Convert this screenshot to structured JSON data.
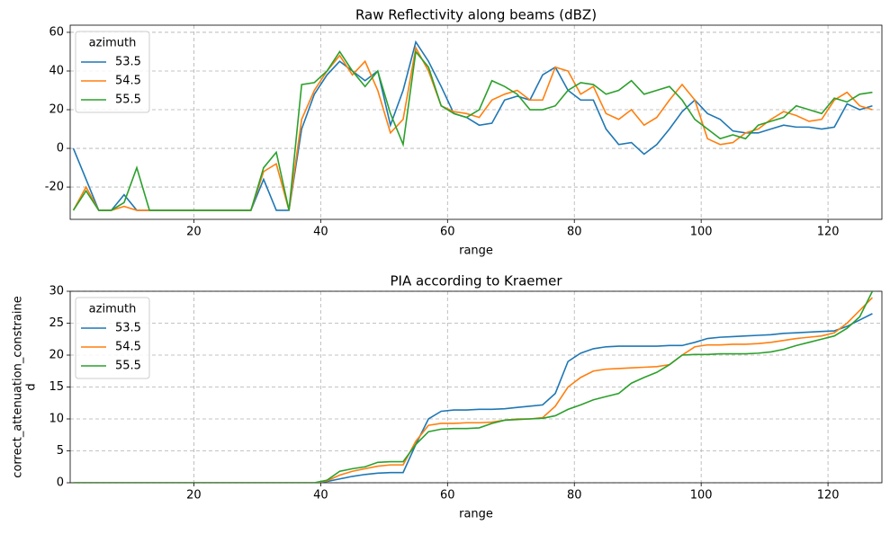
{
  "chart_data": [
    {
      "type": "line",
      "title": "Raw Reflectivity along beams (dBZ)",
      "xlabel": "range",
      "x": [
        1,
        3,
        5,
        7,
        9,
        11,
        13,
        15,
        17,
        19,
        21,
        23,
        25,
        27,
        29,
        31,
        33,
        35,
        37,
        39,
        41,
        43,
        45,
        47,
        49,
        51,
        53,
        55,
        57,
        59,
        61,
        63,
        65,
        67,
        69,
        71,
        73,
        75,
        77,
        79,
        81,
        83,
        85,
        87,
        89,
        91,
        93,
        95,
        97,
        99,
        101,
        103,
        105,
        107,
        109,
        111,
        113,
        115,
        117,
        119,
        121,
        123,
        125,
        127
      ],
      "xlim": [
        0.5,
        128.5
      ],
      "xticks": [
        20,
        40,
        60,
        80,
        100,
        120
      ],
      "ylim": [
        -36.7,
        63.7
      ],
      "yticks": [
        -20,
        0,
        20,
        40,
        60
      ],
      "grid": true,
      "legend_title": "azimuth",
      "legend": "upper left",
      "series": [
        {
          "name": "53.5",
          "color": "#1f77b4",
          "values": [
            0,
            -16,
            -32,
            -32,
            -24,
            -32,
            -32,
            -32,
            -32,
            -32,
            -32,
            -32,
            -32,
            -32,
            -32,
            -16,
            -32,
            -32,
            10,
            28,
            38,
            45,
            40,
            35,
            40,
            12,
            30,
            55,
            45,
            32,
            18,
            16,
            12,
            13,
            25,
            27,
            25,
            38,
            42,
            30,
            25,
            25,
            10,
            2,
            3,
            -3,
            2,
            10,
            19,
            25,
            18,
            15,
            9,
            8,
            8,
            10,
            12,
            11,
            11,
            10,
            11,
            23,
            20,
            22
          ]
        },
        {
          "name": "54.5",
          "color": "#ff7f0e",
          "values": [
            -32,
            -20,
            -32,
            -32,
            -30,
            -32,
            -32,
            -32,
            -32,
            -32,
            -32,
            -32,
            -32,
            -32,
            -32,
            -12,
            -8,
            -32,
            15,
            30,
            40,
            48,
            38,
            45,
            30,
            8,
            15,
            52,
            40,
            22,
            19,
            18,
            16,
            25,
            28,
            30,
            25,
            25,
            42,
            40,
            28,
            32,
            18,
            15,
            20,
            12,
            16,
            25,
            33,
            25,
            5,
            2,
            3,
            8,
            10,
            15,
            19,
            17,
            14,
            15,
            25,
            29,
            22,
            20
          ]
        },
        {
          "name": "55.5",
          "color": "#2ca02c",
          "values": [
            -32,
            -22,
            -32,
            -32,
            -28,
            -10,
            -32,
            -32,
            -32,
            -32,
            -32,
            -32,
            -32,
            -32,
            -32,
            -10,
            -2,
            -32,
            33,
            34,
            40,
            50,
            40,
            32,
            40,
            18,
            2,
            50,
            42,
            22,
            18,
            16,
            20,
            35,
            32,
            28,
            20,
            20,
            22,
            30,
            34,
            33,
            28,
            30,
            35,
            28,
            30,
            32,
            25,
            15,
            10,
            5,
            7,
            5,
            12,
            14,
            16,
            22,
            20,
            18,
            26,
            24,
            28,
            29
          ]
        }
      ]
    },
    {
      "type": "line",
      "title": "PIA according to Kraemer",
      "xlabel": "range",
      "ylabel": [
        "correct_attenuation_constraine",
        "d"
      ],
      "x": [
        1,
        3,
        5,
        7,
        9,
        11,
        13,
        15,
        17,
        19,
        21,
        23,
        25,
        27,
        29,
        31,
        33,
        35,
        37,
        39,
        41,
        43,
        45,
        47,
        49,
        51,
        53,
        55,
        57,
        59,
        61,
        63,
        65,
        67,
        69,
        71,
        73,
        75,
        77,
        79,
        81,
        83,
        85,
        87,
        89,
        91,
        93,
        95,
        97,
        99,
        101,
        103,
        105,
        107,
        109,
        111,
        113,
        115,
        117,
        119,
        121,
        123,
        125,
        127
      ],
      "xlim": [
        0.5,
        128.5
      ],
      "xticks": [
        20,
        40,
        60,
        80,
        100,
        120
      ],
      "ylim": [
        0,
        30
      ],
      "yticks": [
        0,
        5,
        10,
        15,
        20,
        25,
        30
      ],
      "grid": true,
      "legend_title": "azimuth",
      "legend": "upper left",
      "series": [
        {
          "name": "53.5",
          "color": "#1f77b4",
          "values": [
            0,
            0,
            0,
            0,
            0,
            0,
            0,
            0,
            0,
            0,
            0,
            0,
            0,
            0,
            0,
            0,
            0,
            0,
            0,
            0,
            0.2,
            0.6,
            1.0,
            1.3,
            1.5,
            1.6,
            1.6,
            6,
            10,
            11.2,
            11.4,
            11.4,
            11.5,
            11.5,
            11.6,
            11.8,
            12,
            12.2,
            14,
            19,
            20.3,
            21,
            21.3,
            21.4,
            21.4,
            21.4,
            21.4,
            21.5,
            21.5,
            22,
            22.6,
            22.8,
            22.9,
            23,
            23.1,
            23.2,
            23.4,
            23.5,
            23.6,
            23.7,
            23.8,
            24.5,
            25.5,
            26.5
          ]
        },
        {
          "name": "54.5",
          "color": "#ff7f0e",
          "values": [
            0,
            0,
            0,
            0,
            0,
            0,
            0,
            0,
            0,
            0,
            0,
            0,
            0,
            0,
            0,
            0,
            0,
            0,
            0,
            0,
            0.3,
            1.2,
            1.8,
            2.2,
            2.6,
            2.8,
            2.8,
            6.5,
            9,
            9.3,
            9.3,
            9.4,
            9.4,
            9.5,
            9.8,
            10,
            10,
            10.2,
            12,
            15,
            16.5,
            17.5,
            17.8,
            17.9,
            18,
            18.1,
            18.2,
            18.5,
            20,
            21.3,
            21.6,
            21.6,
            21.7,
            21.7,
            21.8,
            22,
            22.3,
            22.6,
            22.8,
            23,
            23.5,
            25,
            27,
            29
          ]
        },
        {
          "name": "55.5",
          "color": "#2ca02c",
          "values": [
            0,
            0,
            0,
            0,
            0,
            0,
            0,
            0,
            0,
            0,
            0,
            0,
            0,
            0,
            0,
            0,
            0,
            0,
            0,
            0,
            0.4,
            1.8,
            2.2,
            2.5,
            3.2,
            3.3,
            3.3,
            6,
            8,
            8.4,
            8.5,
            8.5,
            8.6,
            9.3,
            9.8,
            9.9,
            10,
            10.1,
            10.5,
            11.5,
            12.2,
            13,
            13.5,
            14,
            15.6,
            16.5,
            17.3,
            18.5,
            20,
            20.1,
            20.1,
            20.2,
            20.2,
            20.2,
            20.3,
            20.5,
            20.9,
            21.5,
            22,
            22.5,
            23,
            24.2,
            26,
            30
          ]
        }
      ]
    }
  ]
}
